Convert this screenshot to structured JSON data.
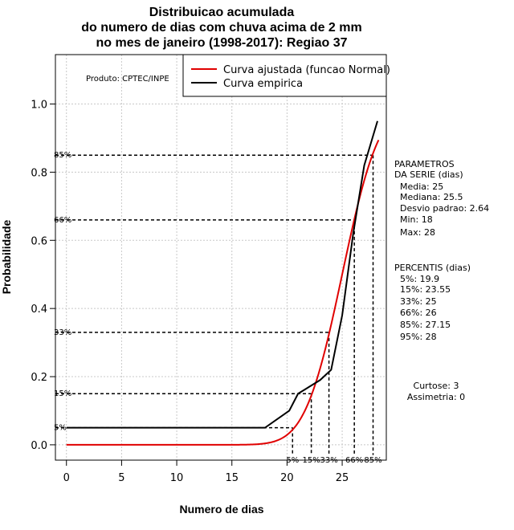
{
  "chart_data": {
    "type": "line",
    "title": [
      "Distribuicao acumulada",
      "do numero de dias com chuva acima de 2 mm",
      "no mes de janeiro (1998-2017): Regiao 37"
    ],
    "xlabel": "Numero de dias",
    "ylabel": "Probabilidade",
    "xlim": [
      -1,
      29
    ],
    "ylim": [
      -0.045,
      1.145
    ],
    "xticks": [
      0,
      5,
      10,
      15,
      20,
      25
    ],
    "yticks": [
      0.0,
      0.2,
      0.4,
      0.6,
      0.8,
      1.0
    ],
    "x_tick_labels": [
      "0",
      "5",
      "10",
      "15",
      "20",
      "25"
    ],
    "y_tick_labels": [
      "0.0",
      "0.2",
      "0.4",
      "0.6",
      "0.8",
      "1.0"
    ],
    "grid": true,
    "series": [
      {
        "name": "Curva ajustada (funcao Normal)",
        "color": "#e00000",
        "kind": "normal_cdf",
        "mean": 25,
        "sd": 2.64,
        "x_range": [
          0,
          28.3
        ]
      },
      {
        "name": "Curva empirica",
        "color": "#000000",
        "kind": "points",
        "points": [
          [
            0,
            0.05
          ],
          [
            18,
            0.05
          ],
          [
            20.2,
            0.1
          ],
          [
            21,
            0.15
          ],
          [
            22,
            0.17
          ],
          [
            23,
            0.19
          ],
          [
            24,
            0.22
          ],
          [
            25,
            0.38
          ],
          [
            26,
            0.62
          ],
          [
            27,
            0.82
          ],
          [
            28.2,
            0.95
          ]
        ]
      }
    ],
    "percentile_lines": [
      {
        "label": "5%",
        "p": 0.05,
        "x": 20.5
      },
      {
        "label": "15%",
        "p": 0.15,
        "x": 22.2
      },
      {
        "label": "33%",
        "p": 0.33,
        "x": 23.8
      },
      {
        "label": "66%",
        "p": 0.66,
        "x": 26.1
      },
      {
        "label": "85%",
        "p": 0.85,
        "x": 27.8
      }
    ],
    "legend": {
      "position": "top-right",
      "entries": [
        "Curva ajustada (funcao Normal)",
        "Curva empirica"
      ]
    },
    "annotations": {
      "product": "Produto: CPTEC/INPE"
    }
  },
  "side_panel": {
    "parametros_lines": [
      "PARAMETROS",
      "DA SERIE (dias)",
      "Media: 25",
      "Mediana: 25.5",
      "Desvio padrao: 2.64",
      "Min: 18",
      "Max: 28"
    ],
    "percentis_lines": [
      "PERCENTIS (dias)",
      "5%: 19.9",
      "15%: 23.55",
      "33%: 25",
      "66%: 26",
      "85%: 27.15",
      "95%: 28"
    ],
    "shape_lines": [
      "Curtose: 3",
      "Assimetria: 0"
    ]
  }
}
